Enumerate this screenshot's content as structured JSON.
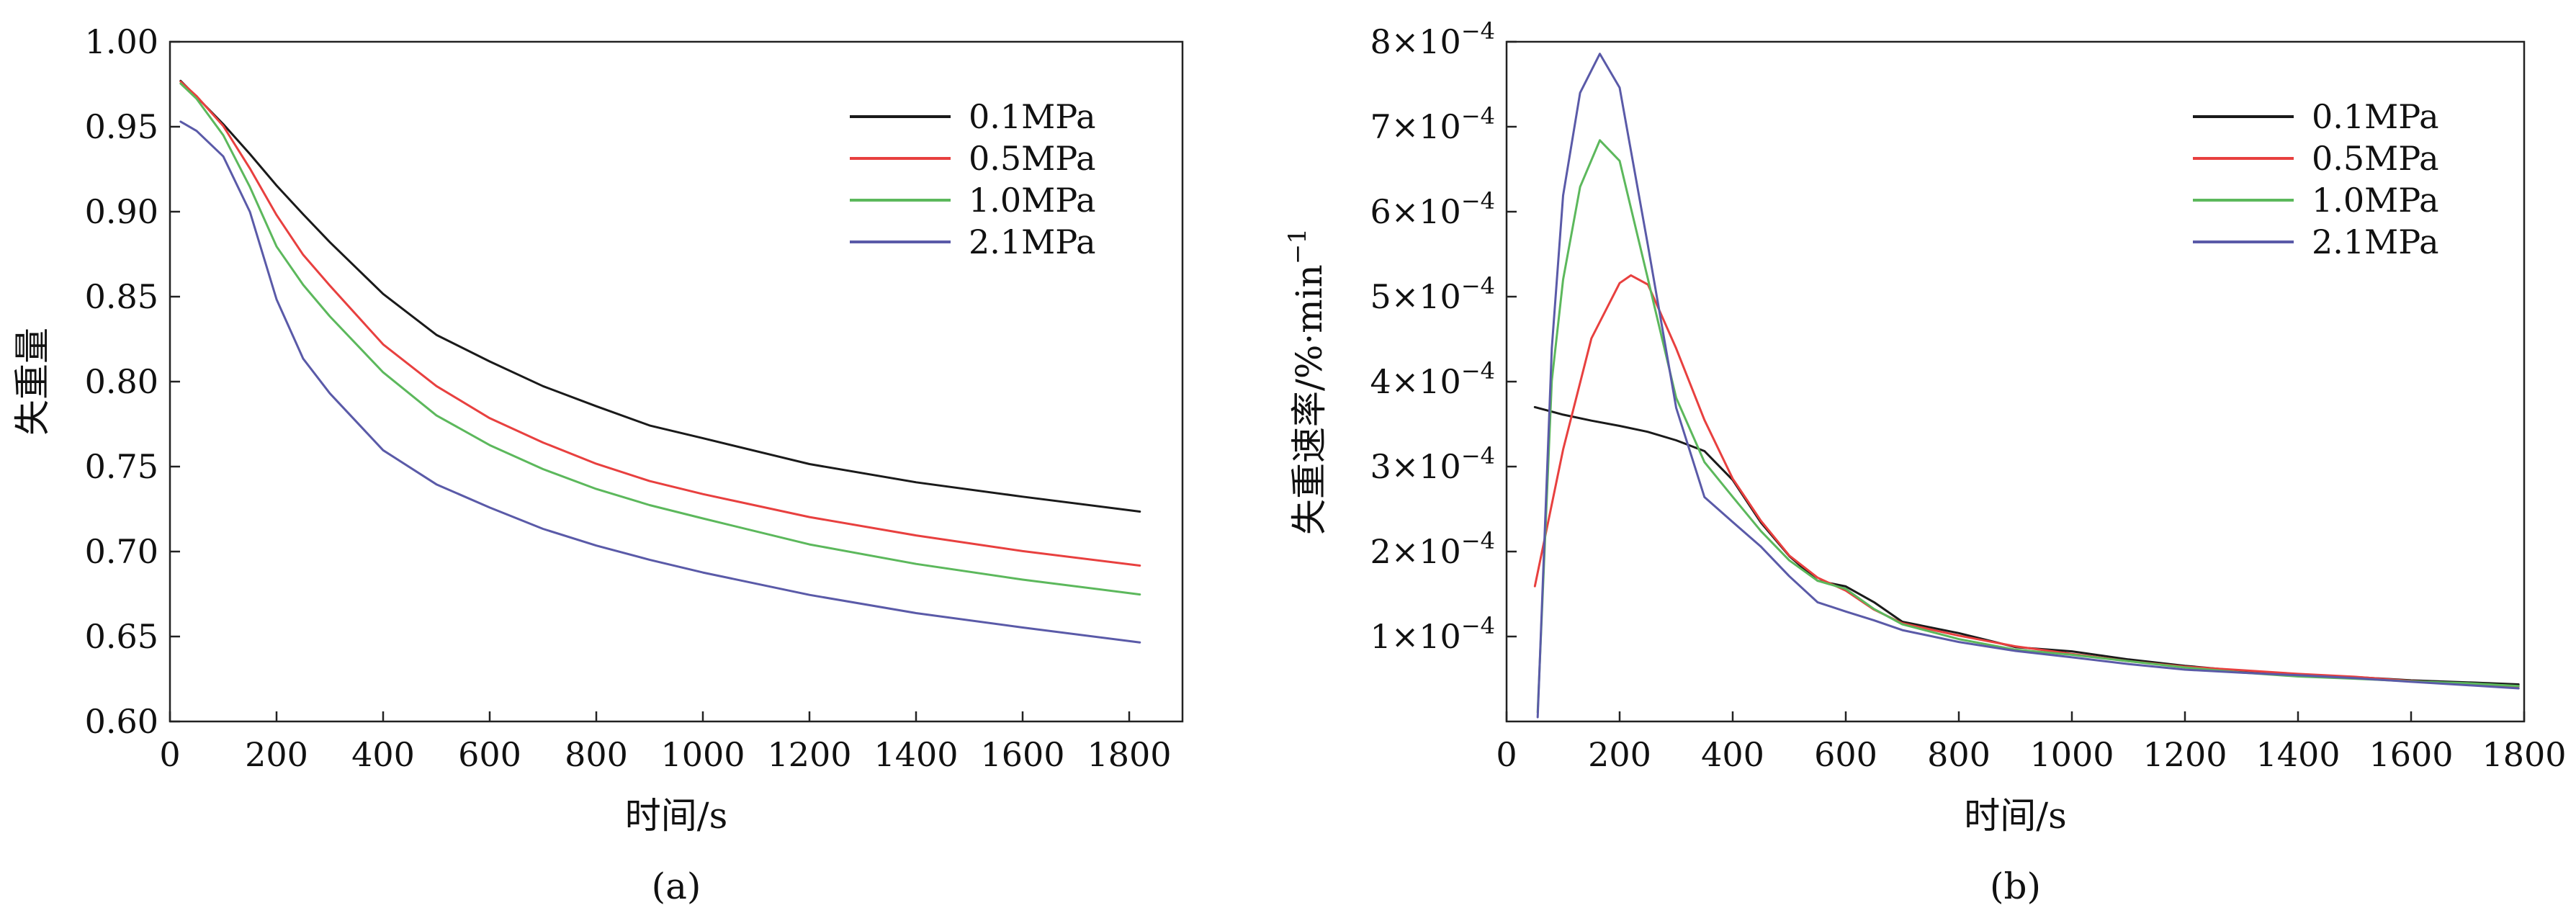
{
  "chart_data": [
    {
      "id": "a",
      "type": "line",
      "caption": "(a)",
      "xlabel": "时间/s",
      "ylabel": "失重量",
      "xlim": [
        0,
        1900
      ],
      "ylim": [
        0.6,
        1.0
      ],
      "xticks": [
        0,
        200,
        400,
        600,
        800,
        1000,
        1200,
        1400,
        1600,
        1800
      ],
      "xtick_labels": [
        "0",
        "200",
        "400",
        "600",
        "800",
        "1000",
        "1200",
        "1400",
        "1600",
        "1800"
      ],
      "yticks": [
        0.6,
        0.65,
        0.7,
        0.75,
        0.8,
        0.85,
        0.9,
        0.95,
        1.0
      ],
      "ytick_labels": [
        "0.60",
        "0.65",
        "0.70",
        "0.75",
        "0.80",
        "0.85",
        "0.90",
        "0.95",
        "1.00"
      ],
      "legend_position": "top-right",
      "series": [
        {
          "name": "0.1MPa",
          "color": "#1a1a1a",
          "x": [
            20,
            50,
            100,
            150,
            200,
            250,
            300,
            400,
            500,
            600,
            700,
            800,
            900,
            1000,
            1200,
            1400,
            1600,
            1820
          ],
          "y": [
            0.977,
            0.968,
            0.952,
            0.934,
            0.915,
            0.898,
            0.882,
            0.852,
            0.828,
            0.812,
            0.797,
            0.785,
            0.774,
            0.767,
            0.752,
            0.741,
            0.732,
            0.723
          ]
        },
        {
          "name": "0.5MPa",
          "color": "#e8403f",
          "x": [
            20,
            50,
            100,
            150,
            200,
            250,
            300,
            400,
            500,
            600,
            700,
            800,
            900,
            1000,
            1200,
            1400,
            1600,
            1820
          ],
          "y": [
            0.977,
            0.968,
            0.95,
            0.925,
            0.898,
            0.875,
            0.857,
            0.822,
            0.797,
            0.778,
            0.764,
            0.752,
            0.742,
            0.734,
            0.72,
            0.709,
            0.7,
            0.692
          ]
        },
        {
          "name": "1.0MPa",
          "color": "#5cb85c",
          "x": [
            20,
            50,
            100,
            150,
            200,
            250,
            300,
            400,
            500,
            600,
            700,
            800,
            900,
            1000,
            1200,
            1400,
            1600,
            1820
          ],
          "y": [
            0.975,
            0.966,
            0.945,
            0.915,
            0.88,
            0.857,
            0.838,
            0.805,
            0.78,
            0.763,
            0.749,
            0.737,
            0.727,
            0.719,
            0.704,
            0.693,
            0.684,
            0.675
          ]
        },
        {
          "name": "2.1MPa",
          "color": "#5a5aa8",
          "x": [
            20,
            50,
            100,
            150,
            200,
            250,
            300,
            400,
            500,
            600,
            700,
            800,
            900,
            1000,
            1200,
            1400,
            1600,
            1820
          ],
          "y": [
            0.953,
            0.948,
            0.933,
            0.9,
            0.848,
            0.813,
            0.793,
            0.76,
            0.74,
            0.726,
            0.713,
            0.703,
            0.695,
            0.688,
            0.675,
            0.664,
            0.655,
            0.646
          ]
        }
      ]
    },
    {
      "id": "b",
      "type": "line",
      "caption": "(b)",
      "xlabel": "时间/s",
      "ylabel_text": "失重速率/%·min",
      "ylabel_sup": "−1",
      "xlim": [
        0,
        1800
      ],
      "ylim": [
        0,
        0.0008
      ],
      "xticks": [
        0,
        200,
        400,
        600,
        800,
        1000,
        1200,
        1400,
        1600,
        1800
      ],
      "xtick_labels": [
        "0",
        "200",
        "400",
        "600",
        "800",
        "1000",
        "1200",
        "1400",
        "1600",
        "1800"
      ],
      "yticks": [
        0.0001,
        0.0002,
        0.0003,
        0.0004,
        0.0005,
        0.0006,
        0.0007,
        0.0008
      ],
      "ytick_mantissas": [
        "1×10",
        "2×10",
        "3×10",
        "4×10",
        "5×10",
        "6×10",
        "7×10",
        "8×10"
      ],
      "ytick_exponent": "−4",
      "legend_position": "top-right",
      "series": [
        {
          "name": "0.1MPa",
          "color": "#1a1a1a",
          "x": [
            50,
            100,
            150,
            200,
            250,
            300,
            350,
            400,
            450,
            500,
            550,
            600,
            650,
            700,
            800,
            900,
            1000,
            1100,
            1200,
            1300,
            1400,
            1500,
            1600,
            1700,
            1790
          ],
          "y": [
            0.00037,
            0.000362,
            0.000355,
            0.000348,
            0.00034,
            0.00033,
            0.000318,
            0.000285,
            0.000235,
            0.000195,
            0.000165,
            0.000158,
            0.00014,
            0.000118,
            0.000105,
            8.8e-05,
            8.2e-05,
            7.2e-05,
            6.5e-05,
            6e-05,
            5.5e-05,
            5.3e-05,
            4.8e-05,
            4.5e-05,
            4.3e-05
          ]
        },
        {
          "name": "0.5MPa",
          "color": "#e8403f",
          "x": [
            50,
            100,
            150,
            200,
            220,
            250,
            300,
            350,
            400,
            450,
            500,
            550,
            600,
            650,
            700,
            800,
            900,
            1000,
            1100,
            1200,
            1300,
            1400,
            1500,
            1600,
            1700,
            1790
          ],
          "y": [
            0.00016,
            0.00032,
            0.00045,
            0.000515,
            0.000525,
            0.000515,
            0.00044,
            0.000355,
            0.000285,
            0.000235,
            0.000195,
            0.00017,
            0.000155,
            0.000132,
            0.000115,
            0.0001,
            8.8e-05,
            8e-05,
            7.2e-05,
            6.5e-05,
            6e-05,
            5.5e-05,
            5.2e-05,
            4.8e-05,
            4.5e-05,
            4.2e-05
          ]
        },
        {
          "name": "1.0MPa",
          "color": "#5cb85c",
          "x": [
            55,
            80,
            100,
            130,
            165,
            200,
            250,
            300,
            350,
            400,
            450,
            500,
            550,
            600,
            650,
            700,
            800,
            900,
            1000,
            1100,
            1200,
            1300,
            1400,
            1500,
            1600,
            1700,
            1790
          ],
          "y": [
            1e-05,
            0.0004,
            0.00052,
            0.00063,
            0.000685,
            0.00066,
            0.00052,
            0.00038,
            0.000305,
            0.000265,
            0.000225,
            0.00019,
            0.000165,
            0.000155,
            0.000132,
            0.000115,
            9.8e-05,
            8.5e-05,
            7.8e-05,
            7e-05,
            6.3e-05,
            5.8e-05,
            5.4e-05,
            5.1e-05,
            4.7e-05,
            4.4e-05,
            4.1e-05
          ]
        },
        {
          "name": "2.1MPa",
          "color": "#5a5aa8",
          "x": [
            55,
            80,
            100,
            130,
            165,
            200,
            250,
            300,
            350,
            400,
            450,
            500,
            550,
            600,
            650,
            700,
            800,
            900,
            1000,
            1100,
            1200,
            1300,
            1400,
            1500,
            1600,
            1700,
            1790
          ],
          "y": [
            5e-06,
            0.00044,
            0.00062,
            0.00074,
            0.000785,
            0.000745,
            0.00056,
            0.00037,
            0.000265,
            0.000235,
            0.000205,
            0.00017,
            0.00014,
            0.00013,
            0.00012,
            0.000108,
            9.3e-05,
            8.2e-05,
            7.5e-05,
            6.8e-05,
            6.2e-05,
            5.8e-05,
            5.4e-05,
            5e-05,
            4.6e-05,
            4.3e-05,
            4e-05
          ]
        }
      ]
    }
  ]
}
